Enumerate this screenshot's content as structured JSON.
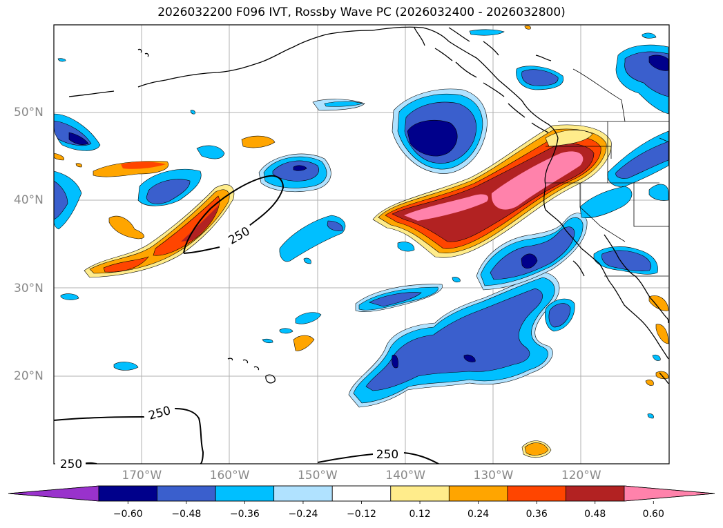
{
  "title": "2026032200 F096 IVT, Rossby Wave PC (2026032400 - 2026032800)",
  "map": {
    "lon_range": [
      -180,
      -110
    ],
    "lat_range": [
      10,
      60
    ],
    "lat_labels": [
      {
        "lat": 50,
        "text": "50°N"
      },
      {
        "lat": 40,
        "text": "40°N"
      },
      {
        "lat": 30,
        "text": "30°N"
      },
      {
        "lat": 20,
        "text": "20°N"
      }
    ],
    "lon_labels": [
      {
        "lon": -170,
        "text": "170°W"
      },
      {
        "lon": -160,
        "text": "160°W"
      },
      {
        "lon": -150,
        "text": "150°W"
      },
      {
        "lon": -140,
        "text": "140°W"
      },
      {
        "lon": -130,
        "text": "130°W"
      },
      {
        "lon": -120,
        "text": "120°W"
      }
    ],
    "ivt_contour_labels": [
      "250",
      "250",
      "250",
      "250"
    ]
  },
  "colorbar": {
    "colors": [
      "#9932cc",
      "#00008b",
      "#3a5fcd",
      "#00bfff",
      "#b0e2ff",
      "#ffffff",
      "#ffec8b",
      "#ffa500",
      "#ff4500",
      "#b22222",
      "#ff82ab"
    ],
    "ticks": [
      "−0.60",
      "−0.48",
      "−0.36",
      "−0.24",
      "−0.12",
      "0.12",
      "0.24",
      "0.36",
      "0.48",
      "0.60"
    ]
  }
}
